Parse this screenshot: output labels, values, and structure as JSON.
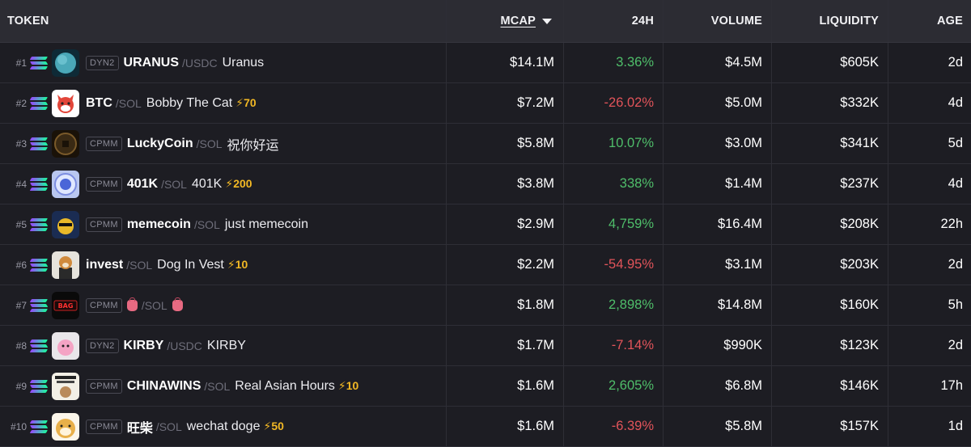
{
  "header": {
    "token": "TOKEN",
    "mcap": "MCAP",
    "change": "24H",
    "volume": "VOLUME",
    "liquidity": "LIQUIDITY",
    "age": "AGE"
  },
  "colors": {
    "positive": "#4fbe6a",
    "negative": "#e2545a",
    "boost": "#f2b824"
  },
  "rows": [
    {
      "rank": "#1",
      "pool": "DYN2",
      "symbol": "URANUS",
      "quote": "/USDC",
      "name": "Uranus",
      "boost": "",
      "mcap": "$14.1M",
      "change": "3.36%",
      "trend": "pos",
      "volume": "$4.5M",
      "liquidity": "$605K",
      "age": "2d",
      "avatar": "planet"
    },
    {
      "rank": "#2",
      "pool": "",
      "symbol": "BTC",
      "quote": "/SOL",
      "name": "Bobby The Cat",
      "boost": "70",
      "mcap": "$7.2M",
      "change": "-26.02%",
      "trend": "neg",
      "volume": "$5.0M",
      "liquidity": "$332K",
      "age": "4d",
      "avatar": "cat"
    },
    {
      "rank": "#3",
      "pool": "CPMM",
      "symbol": "LuckyCoin",
      "quote": "/SOL",
      "name": "祝你好运",
      "boost": "",
      "mcap": "$5.8M",
      "change": "10.07%",
      "trend": "pos",
      "volume": "$3.0M",
      "liquidity": "$341K",
      "age": "5d",
      "avatar": "coin"
    },
    {
      "rank": "#4",
      "pool": "CPMM",
      "symbol": "401K",
      "quote": "/SOL",
      "name": "401K",
      "boost": "200",
      "mcap": "$3.8M",
      "change": "338%",
      "trend": "pos",
      "volume": "$1.4M",
      "liquidity": "$237K",
      "age": "4d",
      "avatar": "401k"
    },
    {
      "rank": "#5",
      "pool": "CPMM",
      "symbol": "memecoin",
      "quote": "/SOL",
      "name": "just memecoin",
      "boost": "",
      "mcap": "$2.9M",
      "change": "4,759%",
      "trend": "pos",
      "volume": "$16.4M",
      "liquidity": "$208K",
      "age": "22h",
      "avatar": "meme"
    },
    {
      "rank": "#6",
      "pool": "",
      "symbol": "invest",
      "quote": "/SOL",
      "name": "Dog In Vest",
      "boost": "10",
      "mcap": "$2.2M",
      "change": "-54.95%",
      "trend": "neg",
      "volume": "$3.1M",
      "liquidity": "$203K",
      "age": "2d",
      "avatar": "dog"
    },
    {
      "rank": "#7",
      "pool": "CPMM",
      "symbol": "",
      "quote": "/SOL",
      "name": "",
      "boost": "",
      "mcap": "$1.8M",
      "change": "2,898%",
      "trend": "pos",
      "volume": "$14.8M",
      "liquidity": "$160K",
      "age": "5h",
      "avatar": "bag",
      "avatar_text": "BAG"
    },
    {
      "rank": "#8",
      "pool": "DYN2",
      "symbol": "KIRBY",
      "quote": "/USDC",
      "name": "KIRBY",
      "boost": "",
      "mcap": "$1.7M",
      "change": "-7.14%",
      "trend": "neg",
      "volume": "$990K",
      "liquidity": "$123K",
      "age": "2d",
      "avatar": "kirby"
    },
    {
      "rank": "#9",
      "pool": "CPMM",
      "symbol": "CHINAWINS",
      "quote": "/SOL",
      "name": "Real Asian Hours",
      "boost": "10",
      "mcap": "$1.6M",
      "change": "2,605%",
      "trend": "pos",
      "volume": "$6.8M",
      "liquidity": "$146K",
      "age": "17h",
      "avatar": "china"
    },
    {
      "rank": "#10",
      "pool": "CPMM",
      "symbol": "旺柴",
      "quote": "/SOL",
      "name": "wechat doge",
      "boost": "50",
      "mcap": "$1.6M",
      "change": "-6.39%",
      "trend": "neg",
      "volume": "$5.8M",
      "liquidity": "$157K",
      "age": "1d",
      "avatar": "doge"
    }
  ]
}
